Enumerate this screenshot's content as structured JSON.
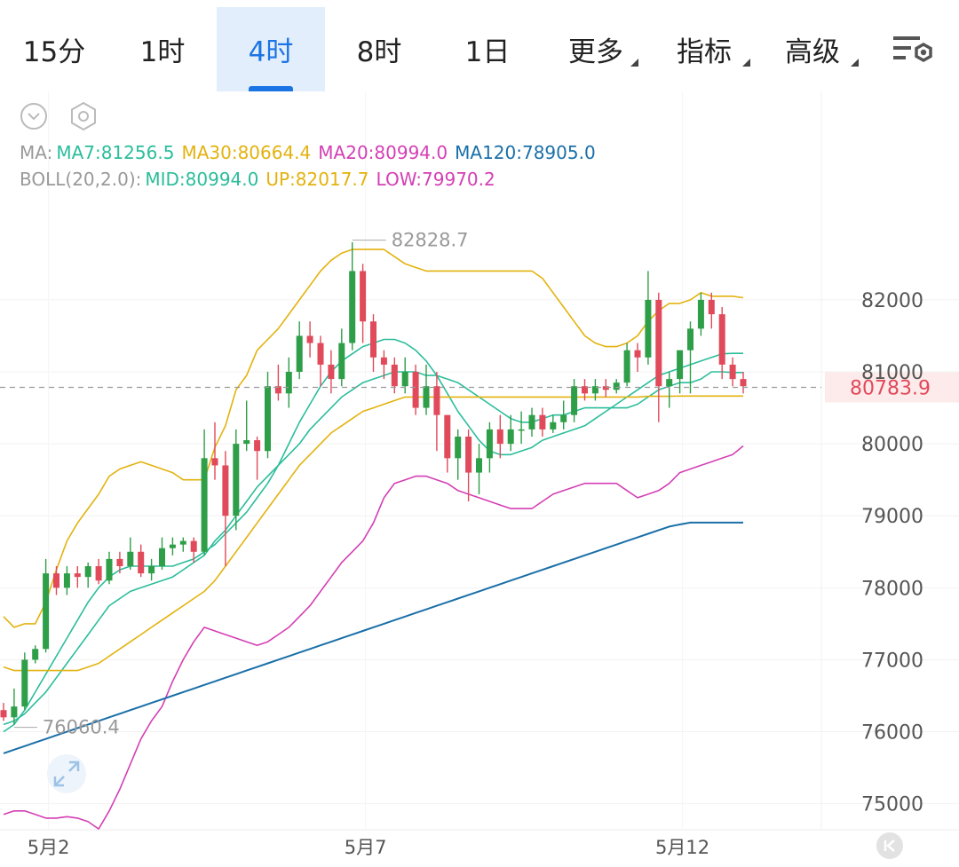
{
  "tabs": [
    {
      "label": "15分",
      "active": false
    },
    {
      "label": "1时",
      "active": false
    },
    {
      "label": "4时",
      "active": true
    },
    {
      "label": "8时",
      "active": false
    },
    {
      "label": "1日",
      "active": false
    },
    {
      "label": "更多",
      "active": false,
      "dropdown": true
    },
    {
      "label": "指标",
      "active": false,
      "dropdown": true
    },
    {
      "label": "高级",
      "active": false,
      "dropdown": true
    }
  ],
  "icons": {
    "settings": "chart-settings-icon",
    "collapse": "chevron-down-circle-icon",
    "style": "hexagon-icon",
    "expand": "expand-arrows-icon",
    "first": "skip-to-start-icon"
  },
  "legend": {
    "ma_prefix": "MA:",
    "ma7": "MA7:81256.5",
    "ma30": "MA30:80664.4",
    "ma20": "MA20:80994.0",
    "ma120": "MA120:78905.0",
    "boll_prefix": "BOLL(20,2.0):",
    "mid": "MID:80994.0",
    "up": "UP:82017.7",
    "low": "LOW:79970.2"
  },
  "colors": {
    "up_candle": "#2e9e48",
    "down_candle": "#e04a5a",
    "ma7": "#2bbd9b",
    "ma30": "#e3b20e",
    "ma20": "#d43fb4",
    "ma120": "#1a6fa8",
    "boll_up": "#e3b20e",
    "boll_mid": "#2bbd9b",
    "boll_low": "#d43fb4",
    "price_tag": "#e04a5a",
    "active_tab": "#1b74e4"
  },
  "chart_data": {
    "type": "candlestick",
    "ylim": [
      74700,
      83700
    ],
    "y_ticks": [
      "82000",
      "81000",
      "80000",
      "79000",
      "78000",
      "77000",
      "76000",
      "75000"
    ],
    "x_labels": [
      {
        "label": "5月2",
        "index": 4
      },
      {
        "label": "5月7",
        "index": 34
      },
      {
        "label": "5月12",
        "index": 64
      }
    ],
    "current_price": "80783.9",
    "annotations": {
      "high": "82828.7",
      "low": "76060.4"
    },
    "candles": [
      [
        76300,
        76200,
        76400,
        76150
      ],
      [
        76200,
        76350,
        76600,
        76100
      ],
      [
        76350,
        77000,
        77100,
        76300
      ],
      [
        77000,
        77150,
        77200,
        76950
      ],
      [
        77150,
        78200,
        78400,
        77100
      ],
      [
        78200,
        78000,
        78300,
        77900
      ],
      [
        78000,
        78200,
        78300,
        77900
      ],
      [
        78200,
        78150,
        78300,
        78000
      ],
      [
        78150,
        78300,
        78350,
        78000
      ],
      [
        78300,
        78100,
        78400,
        78050
      ],
      [
        78100,
        78400,
        78500,
        78050
      ],
      [
        78400,
        78300,
        78500,
        78200
      ],
      [
        78300,
        78500,
        78700,
        78250
      ],
      [
        78500,
        78200,
        78600,
        78150
      ],
      [
        78200,
        78300,
        78400,
        78100
      ],
      [
        78300,
        78550,
        78700,
        78250
      ],
      [
        78550,
        78600,
        78700,
        78450
      ],
      [
        78600,
        78650,
        78700,
        78500
      ],
      [
        78650,
        78500,
        78700,
        78350
      ],
      [
        78500,
        79800,
        80200,
        78450
      ],
      [
        79800,
        79700,
        80300,
        79500
      ],
      [
        79700,
        79000,
        79900,
        78300
      ],
      [
        79000,
        80000,
        80200,
        78800
      ],
      [
        80000,
        80050,
        80600,
        79900
      ],
      [
        80050,
        79900,
        80100,
        79500
      ],
      [
        79900,
        80800,
        81000,
        79800
      ],
      [
        80800,
        80700,
        81100,
        80600
      ],
      [
        80700,
        81000,
        81200,
        80500
      ],
      [
        81000,
        81500,
        81700,
        80900
      ],
      [
        81500,
        81400,
        81700,
        81200
      ],
      [
        81400,
        81100,
        81500,
        80800
      ],
      [
        81100,
        80900,
        81300,
        80700
      ],
      [
        80900,
        81400,
        81600,
        80800
      ],
      [
        81400,
        82400,
        82800,
        81300
      ],
      [
        82400,
        81700,
        82500,
        81400
      ],
      [
        81700,
        81200,
        81800,
        81000
      ],
      [
        81200,
        81100,
        81300,
        80900
      ],
      [
        81100,
        80800,
        81200,
        80700
      ],
      [
        80800,
        81000,
        81200,
        80700
      ],
      [
        81000,
        80500,
        81100,
        80400
      ],
      [
        80500,
        80800,
        81100,
        80400
      ],
      [
        80800,
        80400,
        81000,
        79900
      ],
      [
        80400,
        79800,
        80400,
        79600
      ],
      [
        79800,
        80100,
        80200,
        79500
      ],
      [
        80100,
        79600,
        80200,
        79200
      ],
      [
        79600,
        79800,
        80000,
        79300
      ],
      [
        79800,
        80200,
        80300,
        79600
      ],
      [
        80200,
        80000,
        80400,
        79800
      ],
      [
        80000,
        80200,
        80400,
        79900
      ],
      [
        80200,
        80200,
        80450,
        80000
      ],
      [
        80200,
        80400,
        80500,
        80100
      ],
      [
        80400,
        80200,
        80500,
        80100
      ],
      [
        80200,
        80300,
        80400,
        80150
      ],
      [
        80300,
        80400,
        80600,
        80200
      ],
      [
        80400,
        80800,
        80900,
        80300
      ],
      [
        80800,
        80700,
        80900,
        80600
      ],
      [
        80700,
        80800,
        80900,
        80600
      ],
      [
        80800,
        80750,
        80900,
        80650
      ],
      [
        80750,
        80850,
        80900,
        80700
      ],
      [
        80850,
        81300,
        81400,
        80800
      ],
      [
        81300,
        81200,
        81400,
        81000
      ],
      [
        81200,
        82000,
        82400,
        81100
      ],
      [
        82000,
        80800,
        82100,
        80300
      ],
      [
        80800,
        80900,
        81000,
        80500
      ],
      [
        80900,
        81300,
        81300,
        80700
      ],
      [
        81300,
        81600,
        81700,
        80700
      ],
      [
        81600,
        82000,
        82100,
        81500
      ],
      [
        82000,
        81800,
        82100,
        81600
      ],
      [
        81800,
        81100,
        81900,
        80900
      ],
      [
        81100,
        80900,
        81200,
        80800
      ],
      [
        80900,
        80800,
        81000,
        80700
      ]
    ],
    "series": [
      {
        "key": "boll_up",
        "values": [
          77600,
          77450,
          77500,
          77500,
          77800,
          78250,
          78650,
          78900,
          79100,
          79300,
          79550,
          79650,
          79700,
          79750,
          79700,
          79650,
          79600,
          79500,
          79500,
          79500,
          79950,
          80250,
          80750,
          80950,
          81300,
          81450,
          81600,
          81800,
          82000,
          82200,
          82400,
          82550,
          82650,
          82700,
          82700,
          82700,
          82700,
          82600,
          82500,
          82450,
          82400,
          82400,
          82400,
          82400,
          82400,
          82400,
          82400,
          82400,
          82400,
          82400,
          82400,
          82300,
          82100,
          81900,
          81700,
          81500,
          81400,
          81350,
          81350,
          81400,
          81500,
          81700,
          81850,
          81950,
          81950,
          82000,
          82100,
          82050,
          82050,
          82050,
          82030
        ]
      },
      {
        "key": "boll_mid",
        "values": [
          76100,
          76150,
          76250,
          76400,
          76550,
          76750,
          76950,
          77150,
          77350,
          77550,
          77750,
          77850,
          77950,
          78000,
          78050,
          78100,
          78150,
          78250,
          78350,
          78450,
          78650,
          78800,
          79000,
          79200,
          79400,
          79550,
          79700,
          79850,
          80000,
          80200,
          80350,
          80500,
          80650,
          80750,
          80850,
          80900,
          80950,
          81000,
          81000,
          81000,
          80950,
          80950,
          80900,
          80850,
          80750,
          80650,
          80550,
          80450,
          80350,
          80300,
          80300,
          80350,
          80400,
          80400,
          80450,
          80500,
          80500,
          80500,
          80500,
          80500,
          80550,
          80650,
          80750,
          80800,
          80850,
          80850,
          80900,
          81000,
          81000,
          80990,
          80990
        ]
      },
      {
        "key": "boll_low",
        "values": [
          74850,
          74900,
          74900,
          74850,
          74800,
          74800,
          74820,
          74800,
          74750,
          74650,
          74900,
          75200,
          75550,
          75900,
          76150,
          76350,
          76700,
          77000,
          77250,
          77450,
          77400,
          77350,
          77300,
          77250,
          77200,
          77250,
          77350,
          77450,
          77600,
          77750,
          77950,
          78150,
          78350,
          78500,
          78650,
          78900,
          79250,
          79450,
          79500,
          79550,
          79550,
          79500,
          79450,
          79350,
          79300,
          79250,
          79200,
          79150,
          79100,
          79100,
          79100,
          79200,
          79300,
          79350,
          79400,
          79450,
          79450,
          79450,
          79450,
          79350,
          79250,
          79300,
          79350,
          79450,
          79600,
          79650,
          79700,
          79750,
          79800,
          79850,
          79970
        ]
      },
      {
        "key": "ma7",
        "values": [
          76000,
          76100,
          76300,
          76550,
          76800,
          77050,
          77300,
          77550,
          77800,
          78000,
          78150,
          78250,
          78300,
          78300,
          78300,
          78300,
          78300,
          78350,
          78400,
          78500,
          78600,
          78750,
          78900,
          79050,
          79250,
          79450,
          79700,
          80000,
          80300,
          80550,
          80800,
          81000,
          81150,
          81250,
          81350,
          81400,
          81450,
          81450,
          81400,
          81300,
          81150,
          80950,
          80700,
          80450,
          80250,
          80050,
          79900,
          79850,
          79850,
          79900,
          79950,
          80050,
          80100,
          80150,
          80200,
          80250,
          80350,
          80450,
          80550,
          80650,
          80750,
          80850,
          80950,
          81000,
          81050,
          81100,
          81150,
          81200,
          81250,
          81256,
          81256
        ]
      },
      {
        "key": "ma30",
        "values": [
          76900,
          76850,
          76850,
          76850,
          76850,
          76850,
          76850,
          76850,
          76900,
          76950,
          77050,
          77150,
          77250,
          77350,
          77450,
          77550,
          77650,
          77750,
          77850,
          77950,
          78100,
          78300,
          78500,
          78700,
          78900,
          79100,
          79300,
          79500,
          79700,
          79850,
          80000,
          80150,
          80250,
          80350,
          80450,
          80500,
          80550,
          80600,
          80650,
          80650,
          80650,
          80650,
          80650,
          80650,
          80650,
          80650,
          80650,
          80650,
          80650,
          80650,
          80650,
          80650,
          80650,
          80650,
          80650,
          80650,
          80650,
          80650,
          80650,
          80650,
          80650,
          80660,
          80660,
          80660,
          80664,
          80664,
          80664,
          80664,
          80664,
          80664,
          80664
        ]
      },
      {
        "key": "ma120",
        "values": [
          75700,
          75750,
          75800,
          75850,
          75900,
          75950,
          76000,
          76050,
          76100,
          76150,
          76200,
          76250,
          76300,
          76350,
          76400,
          76450,
          76500,
          76550,
          76600,
          76650,
          76700,
          76750,
          76800,
          76850,
          76900,
          76950,
          77000,
          77050,
          77100,
          77150,
          77200,
          77250,
          77300,
          77350,
          77400,
          77450,
          77500,
          77550,
          77600,
          77650,
          77700,
          77750,
          77800,
          77850,
          77900,
          77950,
          78000,
          78050,
          78100,
          78150,
          78200,
          78250,
          78300,
          78350,
          78400,
          78450,
          78500,
          78550,
          78600,
          78650,
          78700,
          78750,
          78800,
          78850,
          78880,
          78905,
          78905,
          78905,
          78905,
          78905,
          78905
        ]
      }
    ]
  }
}
